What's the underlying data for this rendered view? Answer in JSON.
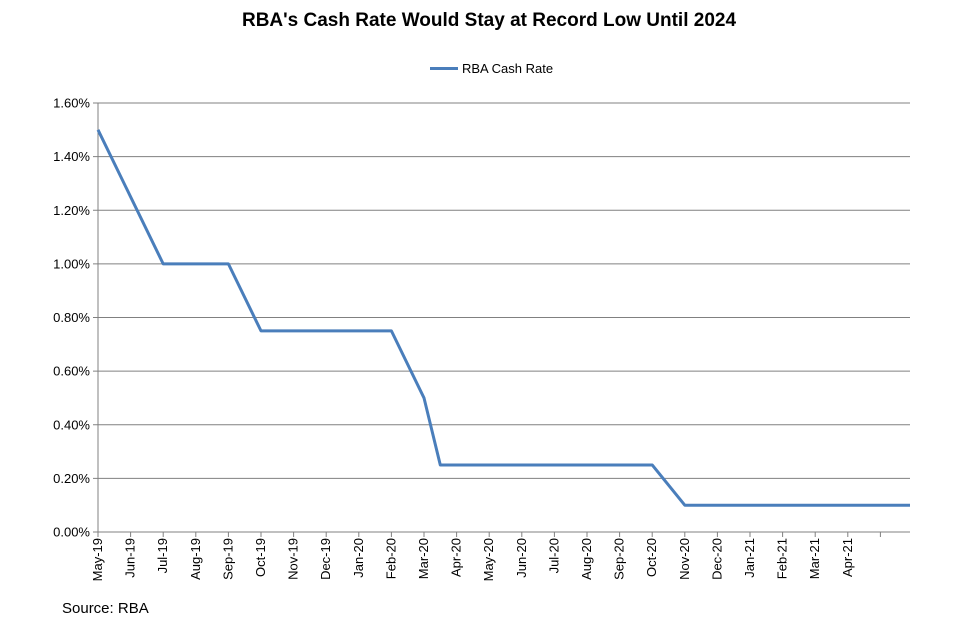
{
  "source": "Source: RBA",
  "colors": {
    "series": "#4a7ebb",
    "grid": "#808080",
    "axis": "#808080"
  },
  "chart_data": {
    "type": "line",
    "title": "RBA's Cash Rate Would Stay at Record Low Until 2024",
    "xlabel": "",
    "ylabel": "",
    "legend_position": "top-center",
    "grid": true,
    "categories": [
      "May-19",
      "Jun-19",
      "Jul-19",
      "Aug-19",
      "Sep-19",
      "Oct-19",
      "Nov-19",
      "Dec-19",
      "Jan-20",
      "Feb-20",
      "Mar-20",
      "Apr-20",
      "May-20",
      "Jun-20",
      "Jul-20",
      "Aug-20",
      "Sep-20",
      "Oct-20",
      "Nov-20",
      "Dec-20",
      "Jan-21",
      "Feb-21",
      "Mar-21",
      "Apr-21"
    ],
    "ylim": [
      0,
      1.6
    ],
    "yticks": [
      0,
      0.2,
      0.4,
      0.6,
      0.8,
      1.0,
      1.2,
      1.4,
      1.6
    ],
    "ytick_labels": [
      "0.00%",
      "0.20%",
      "0.40%",
      "0.60%",
      "0.80%",
      "1.00%",
      "1.20%",
      "1.40%",
      "1.60%"
    ],
    "series": [
      {
        "name": "RBA Cash Rate",
        "x": [
          0,
          2,
          4,
          5,
          9,
          10,
          10.5,
          17,
          18,
          25
        ],
        "values": [
          1.5,
          1.0,
          1.0,
          0.75,
          0.75,
          0.5,
          0.25,
          0.25,
          0.1,
          0.1
        ]
      }
    ]
  }
}
